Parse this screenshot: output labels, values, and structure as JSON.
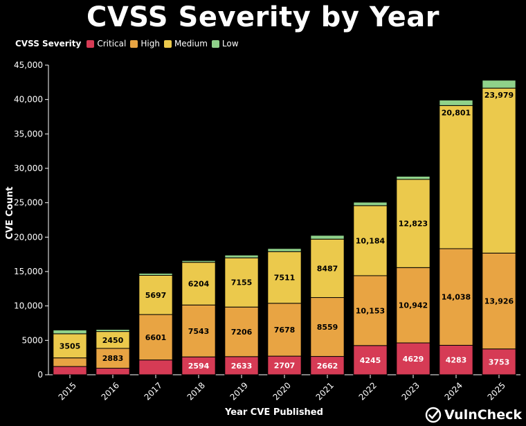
{
  "title": "CVSS Severity by Year",
  "brand": {
    "name": "VulnCheck",
    "icon": "vulncheck-check-logo"
  },
  "legend": {
    "title": "CVSS Severity"
  },
  "chart_data": {
    "type": "bar",
    "stacked": true,
    "title": "CVSS Severity by Year",
    "xlabel": "Year CVE Published",
    "ylabel": "CVE Count",
    "ylim": [
      0,
      45000
    ],
    "yticks": [
      0,
      5000,
      10000,
      15000,
      20000,
      25000,
      30000,
      35000,
      40000,
      45000
    ],
    "ytick_labels": [
      "0",
      "5000",
      "10,000",
      "15,000",
      "20,000",
      "25,000",
      "30,000",
      "35,000",
      "40,000",
      "45,000"
    ],
    "categories": [
      "2015",
      "2016",
      "2017",
      "2018",
      "2019",
      "2020",
      "2021",
      "2022",
      "2023",
      "2024",
      "2025"
    ],
    "legend_position": "top-left",
    "grid": false,
    "series": [
      {
        "name": "Critical",
        "color": "#d63b55",
        "text_color": "#ffffff",
        "values": [
          1200,
          950,
          2150,
          2594,
          2633,
          2707,
          2662,
          4245,
          4629,
          4283,
          3753
        ],
        "labels": [
          "",
          "",
          "",
          "2594",
          "2633",
          "2707",
          "2662",
          "4245",
          "4629",
          "4283",
          "3753"
        ]
      },
      {
        "name": "High",
        "color": "#e8a443",
        "text_color": "#000000",
        "values": [
          1250,
          2883,
          6601,
          7543,
          7206,
          7678,
          8559,
          10153,
          10942,
          14038,
          13926
        ],
        "labels": [
          "",
          "2883",
          "6601",
          "7543",
          "7206",
          "7678",
          "8559",
          "10,153",
          "10,942",
          "14,038",
          "13,926"
        ]
      },
      {
        "name": "Medium",
        "color": "#ebc94c",
        "text_color": "#000000",
        "values": [
          3505,
          2450,
          5697,
          6204,
          7155,
          7511,
          8487,
          10184,
          12823,
          20801,
          23979
        ],
        "labels": [
          "3505",
          "2450",
          "5697",
          "6204",
          "7155",
          "7511",
          "8487",
          "10,184",
          "12,823",
          "20,801",
          "23,979"
        ]
      },
      {
        "name": "Low",
        "color": "#8fd18a",
        "text_color": "#000000",
        "values": [
          550,
          300,
          300,
          250,
          400,
          450,
          550,
          500,
          450,
          800,
          1150
        ],
        "labels": [
          "",
          "",
          "",
          "",
          "",
          "",
          "",
          "",
          "",
          "",
          ""
        ]
      }
    ]
  }
}
